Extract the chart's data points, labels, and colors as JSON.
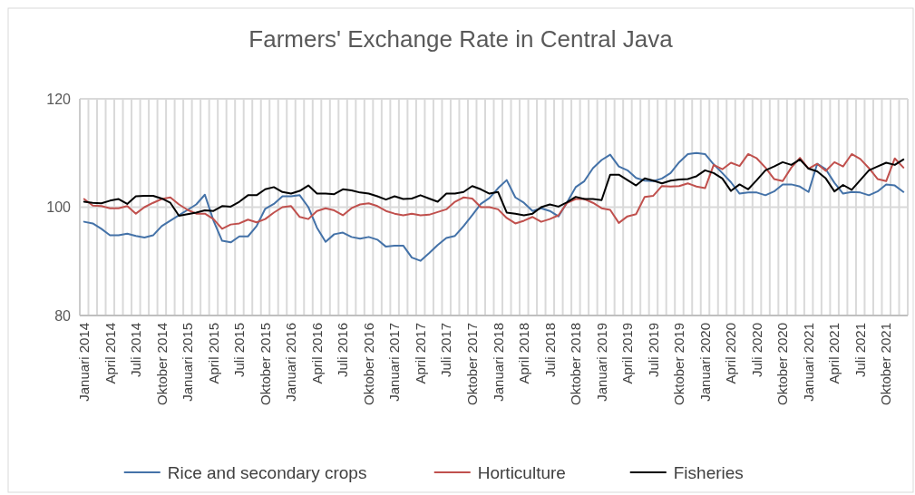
{
  "chart_data": {
    "type": "line",
    "title": "Farmers' Exchange Rate in Central Java",
    "categories": [
      "Januari 2014",
      null,
      null,
      "April 2014",
      null,
      null,
      "Juli 2014",
      null,
      null,
      "Oktober 2014",
      null,
      null,
      "Januari 2015",
      null,
      null,
      "April 2015",
      null,
      null,
      "Juli 2015",
      null,
      null,
      "Oktober 2015",
      null,
      null,
      "Januari 2016",
      null,
      null,
      "April 2016",
      null,
      null,
      "Juli 2016",
      null,
      null,
      "Oktober 2016",
      null,
      null,
      "Januari 2017",
      null,
      null,
      "April 2017",
      null,
      null,
      "Juli 2017",
      null,
      null,
      "Oktober 2017",
      null,
      null,
      "Januari 2018",
      null,
      null,
      "April 2018",
      null,
      null,
      "Juli 2018",
      null,
      null,
      "Oktober 2018",
      null,
      null,
      "Januari 2019",
      null,
      null,
      "April 2019",
      null,
      null,
      "Juli 2019",
      null,
      null,
      "Oktober 2019",
      null,
      null,
      "Januari 2020",
      null,
      null,
      "April 2020",
      null,
      null,
      "Juli 2020",
      null,
      null,
      "Oktober 2020",
      null,
      null,
      "Januari 2021",
      null,
      null,
      "April 2021",
      null,
      null,
      "Juli 2021",
      null,
      null,
      "Oktober 2021",
      null,
      null
    ],
    "series": [
      {
        "name": "Rice and secondary crops",
        "color": "#4472a8",
        "values": [
          97.3,
          97,
          96,
          94.8,
          94.8,
          95.1,
          94.7,
          94.4,
          94.8,
          96.5,
          97.5,
          98.5,
          99.5,
          100.5,
          102.3,
          97.5,
          93.8,
          93.5,
          94.6,
          94.6,
          96.5,
          99.7,
          100.6,
          102,
          102,
          102.2,
          100,
          96.2,
          93.6,
          95,
          95.3,
          94.5,
          94.2,
          94.5,
          94,
          92.7,
          92.9,
          92.9,
          90.7,
          90.1,
          91.5,
          93,
          94.3,
          94.7,
          96.5,
          98.5,
          100.6,
          101.7,
          103.5,
          105,
          101.8,
          100.8,
          99.3,
          99.8,
          99.3,
          98.3,
          100.9,
          103.7,
          104.8,
          107.2,
          108.7,
          109.7,
          107.5,
          106.8,
          105.4,
          104.9,
          104.8,
          105.3,
          106.3,
          108.3,
          109.8,
          110,
          109.8,
          107.9,
          106.3,
          104.6,
          102.5,
          102.7,
          102.7,
          102.2,
          102.9,
          104.2,
          104.2,
          103.8,
          102.8,
          108,
          107,
          104.5,
          102.5,
          102.8,
          102.7,
          102.2,
          102.9,
          104.2,
          104,
          102.8
        ]
      },
      {
        "name": "Horticulture",
        "color": "#c0504d",
        "values": [
          101.5,
          100.3,
          100.2,
          99.8,
          99.8,
          100.2,
          98.8,
          100,
          100.8,
          101.5,
          101.8,
          100.5,
          99.5,
          98.8,
          98.8,
          97.8,
          96,
          96.8,
          97,
          97.7,
          97.2,
          97.8,
          99,
          100,
          100.2,
          98.2,
          97.8,
          99.3,
          99.8,
          99.4,
          98.5,
          99.8,
          100.5,
          100.7,
          100.2,
          99.3,
          98.8,
          98.5,
          98.8,
          98.5,
          98.6,
          99.1,
          99.6,
          101,
          101.8,
          101.6,
          100,
          100,
          99.6,
          98,
          97,
          97.5,
          98.2,
          97.3,
          97.8,
          98.5,
          100.8,
          101.5,
          101.5,
          100.8,
          99.8,
          99.5,
          97.1,
          98.3,
          98.7,
          101.9,
          102.1,
          103.9,
          103.8,
          103.9,
          104.4,
          103.8,
          103.5,
          107.8,
          107,
          108.2,
          107.6,
          109.8,
          109,
          107.3,
          105.2,
          104.8,
          107.3,
          109.1,
          107.1,
          108,
          106.7,
          108.3,
          107.5,
          109.8,
          108.9,
          107.2,
          105.2,
          104.8,
          109,
          107.3
        ]
      },
      {
        "name": "Fisheries",
        "color": "#000000",
        "values": [
          101,
          100.8,
          100.7,
          101.2,
          101.5,
          100.6,
          102,
          102.1,
          102.1,
          101.6,
          100.8,
          98.4,
          98.7,
          99,
          99.4,
          99.3,
          100.2,
          100.1,
          101,
          102.2,
          102.2,
          103.3,
          103.7,
          102.8,
          102.5,
          103,
          104,
          102.5,
          102.5,
          102.4,
          103.3,
          103.1,
          102.7,
          102.5,
          102,
          101.4,
          102,
          101.5,
          101.6,
          102.2,
          101.6,
          101,
          102.5,
          102.5,
          102.8,
          103.9,
          103.3,
          102.5,
          102.8,
          99,
          98.8,
          98.5,
          98.8,
          100,
          100.5,
          100.1,
          100.9,
          101.9,
          101.5,
          101.5,
          101.3,
          106,
          106,
          105,
          104,
          105.3,
          104.9,
          104.4,
          104.9,
          105.1,
          105.2,
          105.7,
          106.8,
          106.3,
          105.3,
          103,
          104.2,
          103.3,
          105,
          106.8,
          107.5,
          108.3,
          107.8,
          108.8,
          107.1,
          106.6,
          105.3,
          102.9,
          104.1,
          103.2,
          105,
          106.8,
          107.5,
          108.2,
          107.8,
          108.8
        ]
      }
    ],
    "ylim": [
      80,
      120
    ],
    "yticks": [
      80,
      100,
      120
    ],
    "grid": true,
    "legend": "bottom"
  }
}
